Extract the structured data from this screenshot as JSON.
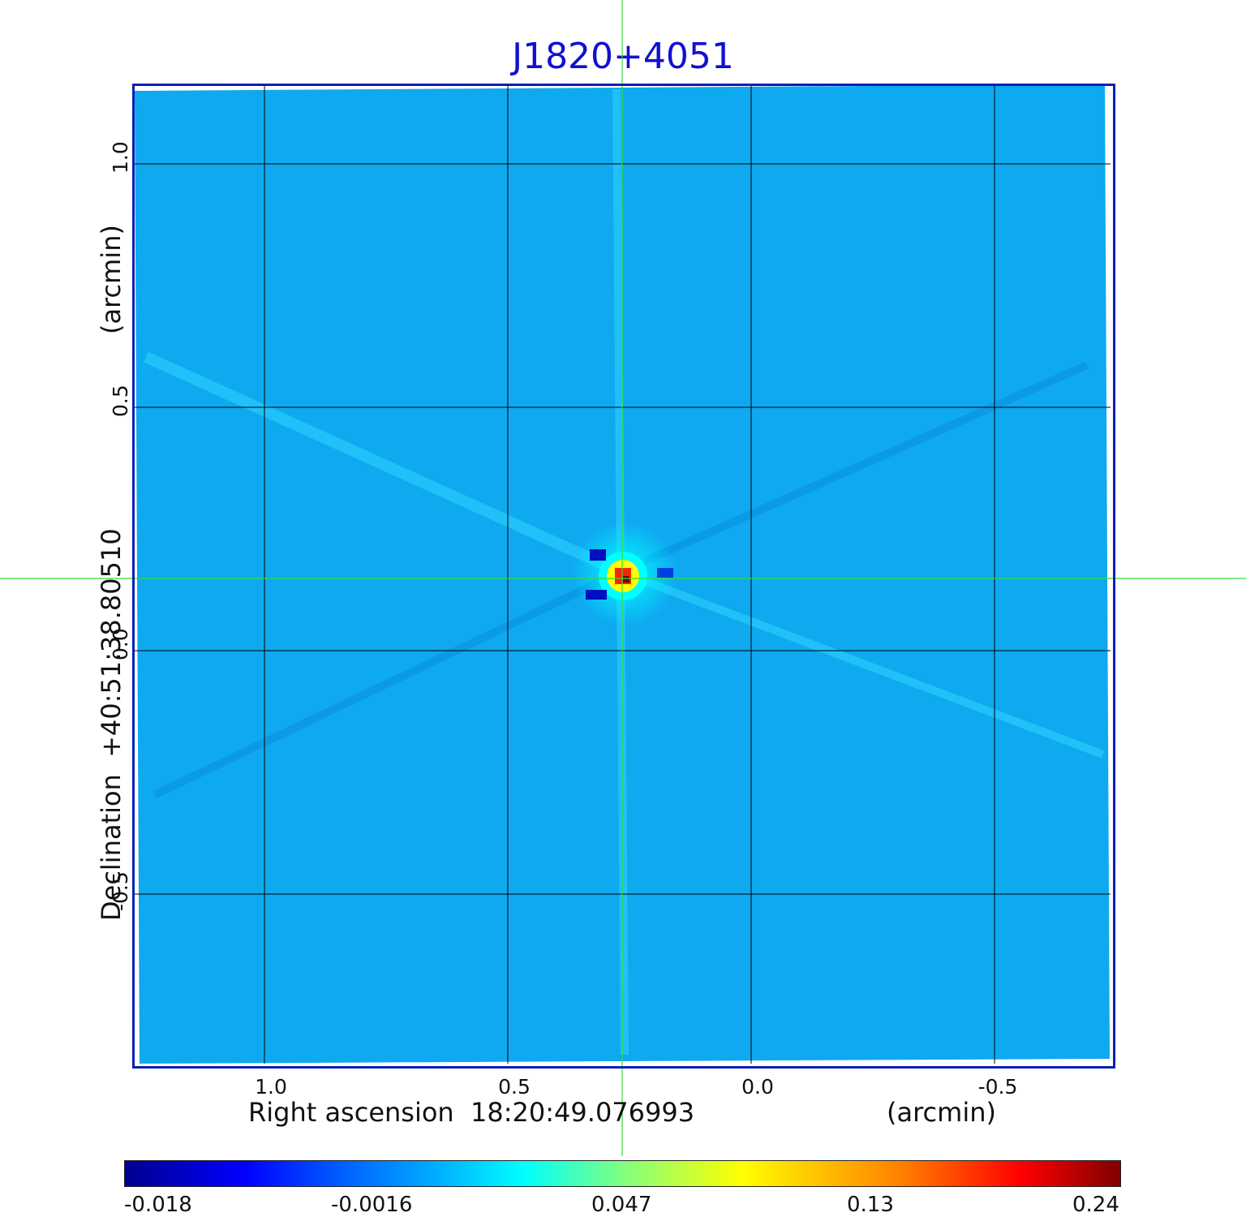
{
  "title": "J1820+4051",
  "x_axis": {
    "label": "Right ascension  18:20:49.076993",
    "unit": "(arcmin)",
    "ticks": [
      "1.0",
      "0.5",
      "0.0",
      "-0.5"
    ]
  },
  "y_axis": {
    "label": "Declination  +40:51:38.80510",
    "unit": "(arcmin)",
    "ticks": [
      "1.0",
      "0.5",
      "0.0",
      "-0.5"
    ]
  },
  "colorbar": {
    "ticks": [
      "-0.018",
      "-0.0016",
      "0.047",
      "0.13",
      "0.24"
    ],
    "colormap": "jet"
  },
  "colors": {
    "background_map": "#0fa9f0",
    "frame": "#0a1fb8",
    "crosshair": "#33dd33",
    "title": "#1010d0"
  }
}
